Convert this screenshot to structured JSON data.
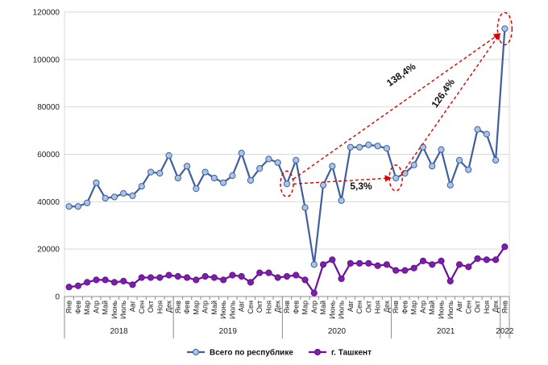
{
  "chart_data": {
    "type": "line",
    "ylim": [
      0,
      120000
    ],
    "yticks": [
      0,
      20000,
      40000,
      60000,
      80000,
      100000,
      120000
    ],
    "ytick_labels": [
      "0",
      "20000",
      "40000",
      "60000",
      "80000",
      "100000",
      "120000"
    ],
    "month_labels": [
      "Янв",
      "Фев",
      "Мар",
      "Апр",
      "Май",
      "Июнь",
      "Июль",
      "Авг",
      "Сен",
      "Окт",
      "Ноя",
      "Дек",
      "Янв",
      "Фев",
      "Мар",
      "Апр",
      "Май",
      "Июнь",
      "Июль",
      "Авг",
      "Сен",
      "Окт",
      "Ноя",
      "Дек",
      "Янв",
      "Фев",
      "Мар",
      "Апр",
      "Май",
      "Июнь",
      "Июль",
      "Авг",
      "Сен",
      "Окт",
      "Ноя",
      "Дек",
      "Янв",
      "Фев",
      "Мар",
      "Апр",
      "Май",
      "Июнь",
      "Июль",
      "Авг",
      "Сен",
      "Окт",
      "Ноя",
      "Дек",
      "Янв"
    ],
    "years": [
      {
        "label": "2018",
        "start": 0,
        "end": 11
      },
      {
        "label": "2019",
        "start": 12,
        "end": 23
      },
      {
        "label": "2020",
        "start": 24,
        "end": 35
      },
      {
        "label": "2021",
        "start": 36,
        "end": 47
      },
      {
        "label": "2022",
        "start": 48,
        "end": 48
      }
    ],
    "series": [
      {
        "name": "Всего по республике",
        "color": "#3f5f9f",
        "marker_fill": "#a9c4e6",
        "values": [
          38000,
          38000,
          39500,
          48000,
          41500,
          42000,
          43500,
          42500,
          46500,
          52500,
          52000,
          59500,
          50000,
          55000,
          45500,
          52500,
          50000,
          48000,
          51000,
          60500,
          49000,
          54000,
          58000,
          56500,
          47500,
          57500,
          37500,
          13500,
          47000,
          55000,
          40500,
          63000,
          63000,
          64000,
          63500,
          62500,
          50000,
          52000,
          55500,
          63000,
          55000,
          62000,
          47000,
          57500,
          53500,
          70500,
          68500,
          57500,
          113000
        ]
      },
      {
        "name": "г. Ташкент",
        "color": "#6a0f9a",
        "marker_fill": "#7a1faa",
        "values": [
          4000,
          4500,
          6000,
          7000,
          7000,
          6000,
          6500,
          5000,
          8000,
          8000,
          8000,
          9000,
          8500,
          8000,
          7000,
          8500,
          8000,
          7000,
          9000,
          8500,
          6000,
          10000,
          10000,
          8000,
          8500,
          9000,
          7000,
          1500,
          13500,
          15500,
          7500,
          14000,
          14000,
          14000,
          13000,
          13500,
          11000,
          11000,
          12000,
          15000,
          13500,
          15000,
          6500,
          13500,
          12500,
          16000,
          15500,
          15500,
          21000
        ]
      }
    ],
    "annotations": [
      {
        "text": "138,4%",
        "from_index": 24,
        "to_index": 48
      },
      {
        "text": "126,4%",
        "from_index": 36,
        "to_index": 48
      },
      {
        "text": "5,3%",
        "from_index": 24,
        "to_index": 36
      }
    ],
    "legend_position": "bottom",
    "grid": true
  }
}
